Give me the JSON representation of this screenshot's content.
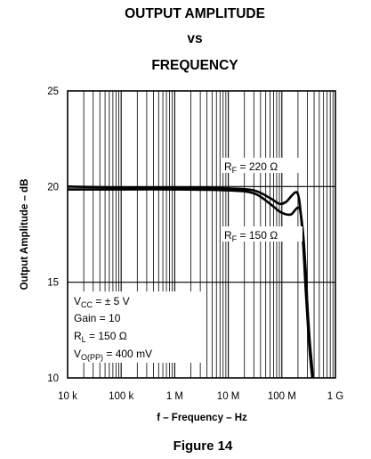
{
  "chart_data": {
    "type": "line",
    "title_lines": [
      "OUTPUT AMPLITUDE",
      "vs",
      "FREQUENCY"
    ],
    "figure_label": "Figure 14",
    "xlabel": "f – Frequency – Hz",
    "ylabel": "Output Amplitude – dB",
    "x_scale": "log",
    "xlim": [
      10000,
      1000000000
    ],
    "ylim": [
      10,
      25
    ],
    "x_tick_values": [
      10000,
      100000,
      1000000,
      10000000,
      100000000,
      1000000000
    ],
    "x_tick_labels": [
      "10 k",
      "100 k",
      "1 M",
      "10 M",
      "100 M",
      "1 G"
    ],
    "y_tick_values": [
      10,
      15,
      20,
      25
    ],
    "y_tick_labels": [
      "10",
      "15",
      "20",
      "25"
    ],
    "grid": true,
    "series": [
      {
        "name": "RF = 220 Ω",
        "label_main": "R",
        "label_sub": "F",
        "label_rest": " = 220 Ω",
        "x": [
          10000,
          100000,
          1000000,
          10000000,
          30000000,
          60000000,
          90000000,
          120000000,
          150000000,
          180000000,
          200000000,
          220000000,
          250000000,
          280000000,
          310000000,
          340000000,
          370000000
        ],
        "y": [
          20.0,
          19.95,
          19.95,
          19.9,
          19.8,
          19.4,
          19.1,
          19.2,
          19.5,
          19.7,
          19.6,
          18.9,
          17.0,
          14.5,
          12.5,
          11.0,
          10.0
        ]
      },
      {
        "name": "RF = 150 Ω",
        "label_main": "R",
        "label_sub": "F",
        "label_rest": " = 150 Ω",
        "x": [
          10000,
          100000,
          1000000,
          10000000,
          30000000,
          60000000,
          90000000,
          120000000,
          150000000,
          180000000,
          200000000,
          220000000,
          250000000,
          280000000,
          300000000,
          330000000,
          360000000,
          380000000
        ],
        "y": [
          19.85,
          19.85,
          19.85,
          19.8,
          19.65,
          19.1,
          18.7,
          18.55,
          18.55,
          18.8,
          18.9,
          18.75,
          17.5,
          15.5,
          13.8,
          12.0,
          10.8,
          10.0
        ]
      }
    ],
    "conditions": [
      {
        "main": "V",
        "sub": "CC",
        "rest": " = ± 5 V"
      },
      {
        "main": "Gain = 10",
        "sub": "",
        "rest": ""
      },
      {
        "main": "R",
        "sub": "L",
        "rest": " = 150 Ω"
      },
      {
        "main": "V",
        "sub": "O(PP)",
        "rest": " = 400 mV"
      }
    ]
  }
}
